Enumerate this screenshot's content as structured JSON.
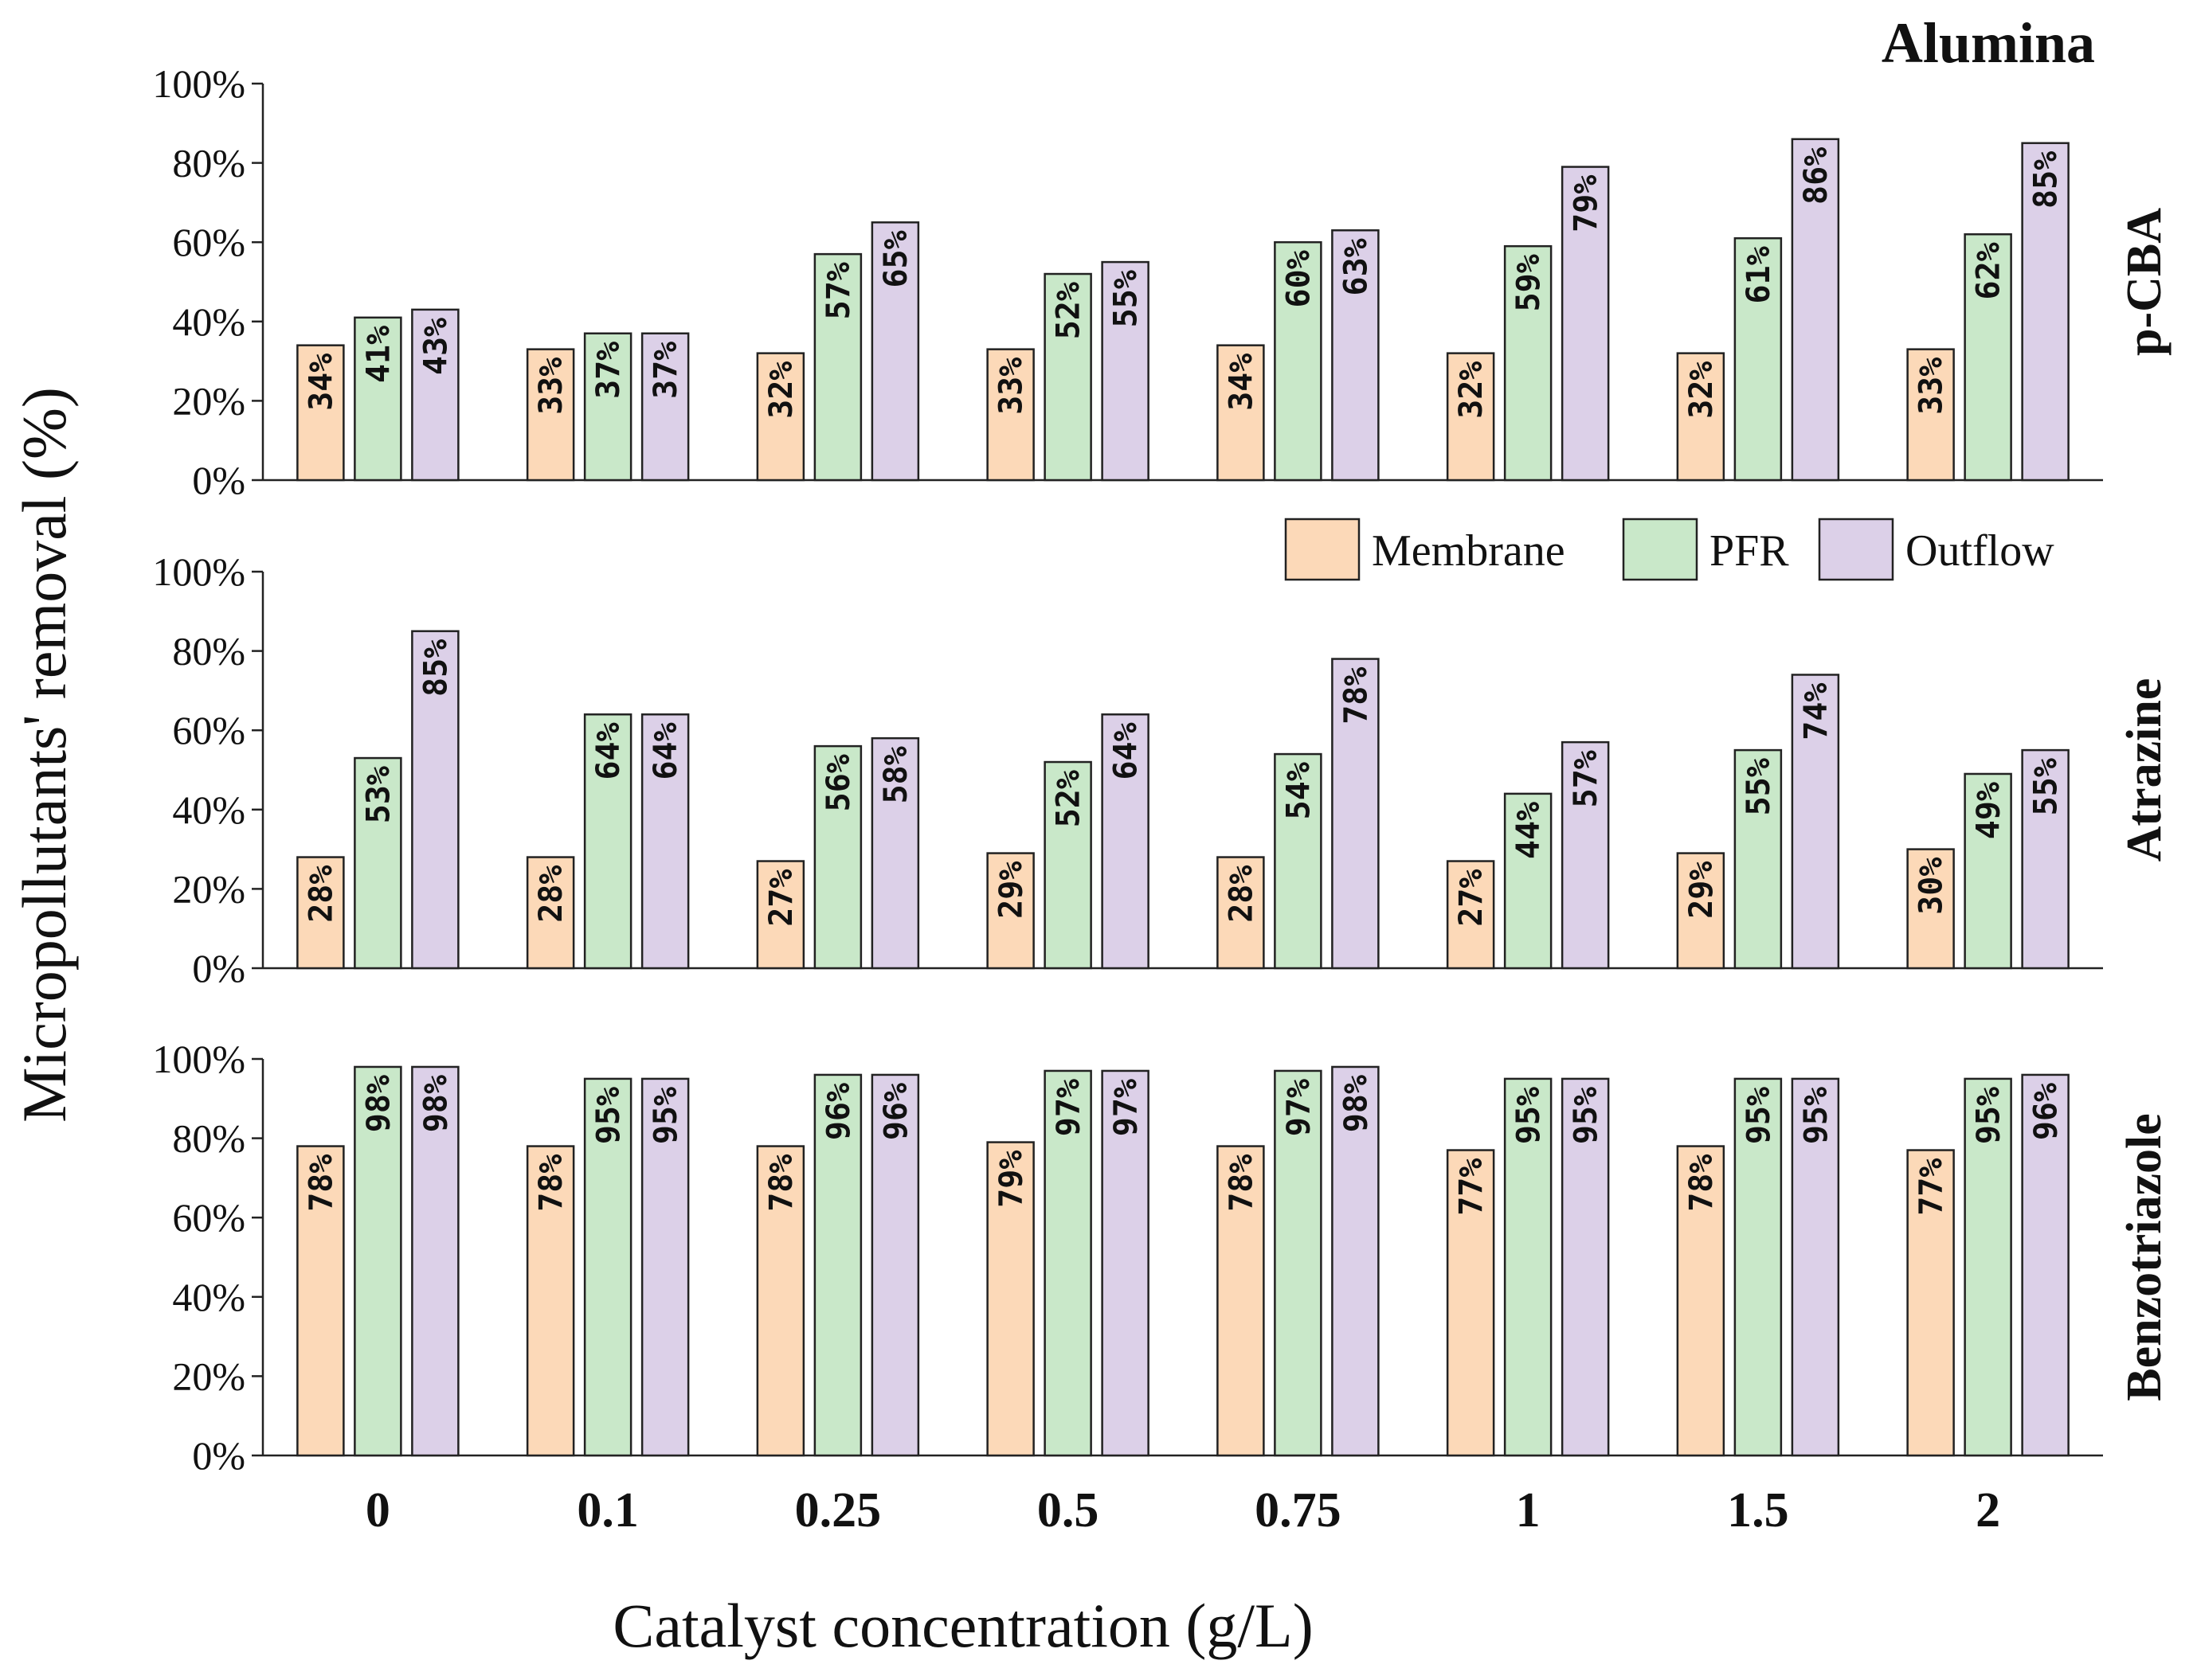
{
  "chart_data": {
    "type": "bar",
    "title": "Alumina",
    "xlabel": "Catalyst concentration (g/L)",
    "ylabel": "Micropollutants' removal (%)",
    "categories": [
      "0",
      "0.1",
      "0.25",
      "0.5",
      "0.75",
      "1",
      "1.5",
      "2"
    ],
    "ylim": [
      0,
      100
    ],
    "yticks": [
      "0%",
      "20%",
      "40%",
      "60%",
      "80%",
      "100%"
    ],
    "legend": {
      "position": "top-right of middle panel",
      "entries": [
        "Membrane",
        "PFR",
        "Outflow"
      ]
    },
    "series_colors": {
      "Membrane": "#fcd9b8",
      "PFR": "#c9e8c9",
      "Outflow": "#dcd0e8"
    },
    "panels": [
      {
        "name": "p-CBA",
        "series": [
          {
            "name": "Membrane",
            "values": [
              34,
              33,
              32,
              33,
              34,
              32,
              32,
              33
            ]
          },
          {
            "name": "PFR",
            "values": [
              41,
              37,
              57,
              52,
              60,
              59,
              61,
              62
            ]
          },
          {
            "name": "Outflow",
            "values": [
              43,
              37,
              65,
              55,
              63,
              79,
              86,
              85
            ]
          }
        ]
      },
      {
        "name": "Atrazine",
        "series": [
          {
            "name": "Membrane",
            "values": [
              28,
              28,
              27,
              29,
              28,
              27,
              29,
              30
            ]
          },
          {
            "name": "PFR",
            "values": [
              53,
              64,
              56,
              52,
              54,
              44,
              55,
              49
            ]
          },
          {
            "name": "Outflow",
            "values": [
              85,
              64,
              58,
              64,
              78,
              57,
              74,
              55
            ]
          }
        ]
      },
      {
        "name": "Benzotriazole",
        "series": [
          {
            "name": "Membrane",
            "values": [
              78,
              78,
              78,
              79,
              78,
              77,
              78,
              77
            ]
          },
          {
            "name": "PFR",
            "values": [
              98,
              95,
              96,
              97,
              97,
              95,
              95,
              95
            ]
          },
          {
            "name": "Outflow",
            "values": [
              98,
              95,
              96,
              97,
              98,
              95,
              95,
              96
            ]
          }
        ]
      }
    ]
  }
}
